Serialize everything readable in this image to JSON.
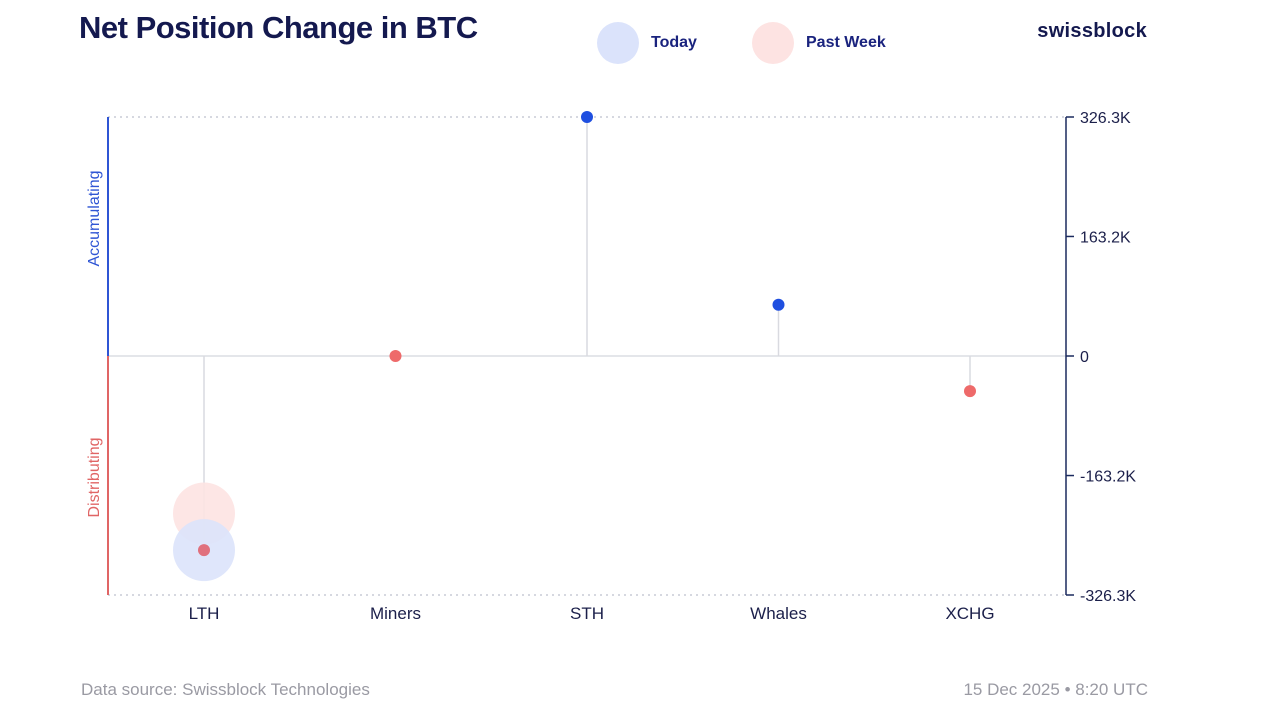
{
  "header": {
    "title": "Net Position Change in BTC",
    "brand": "swissblock"
  },
  "legend": {
    "today_label": "Today",
    "past_week_label": "Past Week"
  },
  "colors": {
    "today": "#1f4fe0",
    "today_bubble": "#dbe3fb",
    "past_week": "#ee6a6a",
    "past_week_bubble": "#fde3e2",
    "title": "#14194f",
    "accumulating": "#2f55d4",
    "distributing": "#e06565",
    "axis": "#1b2a5e",
    "grid": "#c8cbd6"
  },
  "chart_data": {
    "type": "scatter",
    "title": "Net Position Change in BTC",
    "categories": [
      "LTH",
      "Miners",
      "STH",
      "Whales",
      "XCHG"
    ],
    "ylim": [
      -326300,
      326300
    ],
    "y_ticks": [
      326300,
      163200,
      0,
      -163200,
      -326300
    ],
    "y_tick_labels": [
      "326.3K",
      "163.2K",
      "0",
      "-163.2K",
      "-326.3K"
    ],
    "y_axis_side": "right",
    "zones": {
      "positive_label": "Accumulating",
      "negative_label": "Distributing"
    },
    "series": [
      {
        "name": "Today",
        "values": [
          -265000,
          0,
          326300,
          70000,
          -48000
        ],
        "bubble_sizes": [
          31,
          0,
          0,
          0,
          0
        ]
      },
      {
        "name": "Past Week",
        "values": [
          -215000,
          0,
          0,
          0,
          0
        ],
        "bubble_sizes": [
          31,
          0,
          0,
          0,
          0
        ]
      }
    ],
    "markers": [
      {
        "category": "LTH",
        "value": -265000,
        "color": "#e0707d"
      },
      {
        "category": "Miners",
        "value": 0,
        "color": "#ee6a6a"
      },
      {
        "category": "STH",
        "value": 326300,
        "color": "#1f4fe0"
      },
      {
        "category": "Whales",
        "value": 70000,
        "color": "#1f4fe0"
      },
      {
        "category": "XCHG",
        "value": -48000,
        "color": "#ee6a6a"
      }
    ]
  },
  "footer": {
    "source": "Data source: Swissblock Technologies",
    "timestamp": "15 Dec 2025 • 8:20 UTC"
  }
}
